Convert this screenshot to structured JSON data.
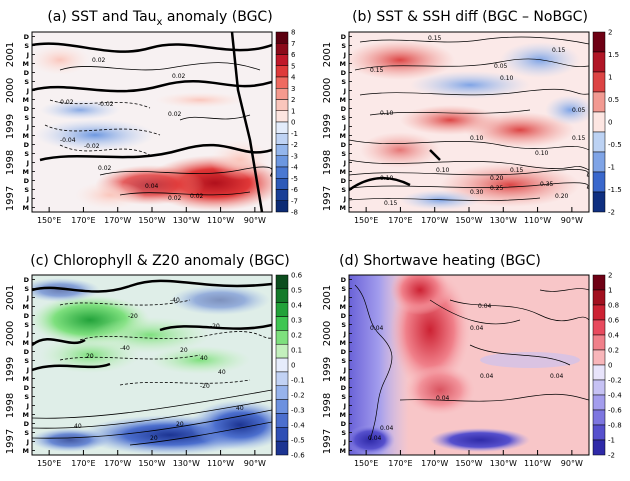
{
  "chart_data": [
    {
      "type": "heatmap",
      "title": "(a) SST and Tau",
      "title_sub": "x",
      "title_tail": " anomaly (BGC)",
      "x_ticks": [
        "150°E",
        "170°E",
        "170°W",
        "150°W",
        "130°W",
        "110°W",
        "90°W"
      ],
      "y_years": [
        "1997",
        "1998",
        "1999",
        "2000",
        "2001"
      ],
      "y_months": [
        "M",
        "J",
        "S",
        "D",
        "M",
        "J",
        "S",
        "D",
        "M",
        "J",
        "S",
        "D",
        "M",
        "J",
        "S",
        "D",
        "M",
        "J",
        "S",
        "D"
      ],
      "colorbar_ticks": [
        "8",
        "7",
        "6",
        "5",
        "4",
        "3",
        "2",
        "1",
        "0",
        "-1",
        "-2",
        "-3",
        "-4",
        "-5",
        "-6",
        "-7",
        "-8"
      ],
      "colorbar_colors": [
        "#5c0010",
        "#8b0a1a",
        "#c0182a",
        "#df3a3a",
        "#ef6a60",
        "#f59a8e",
        "#fac6bc",
        "#fde5e0",
        "#e3ecfb",
        "#bfd3f4",
        "#94b6ec",
        "#6c97e0",
        "#4a78d2",
        "#2e5ab8",
        "#1a3f96",
        "#0c2b74"
      ],
      "contour_labels": [
        "0.02",
        "0.02",
        "-0.02",
        "-0.02",
        "-0.04",
        "-0.02",
        "0.02",
        "0.02",
        "0.04",
        "0.02",
        "0.02"
      ]
    },
    {
      "type": "heatmap",
      "title": "(b) SST & SSH diff (BGC – NoBGC)",
      "x_ticks": [
        "150°E",
        "170°E",
        "170°W",
        "150°W",
        "130°W",
        "110°W",
        "90°W"
      ],
      "y_years": [
        "1997",
        "1998",
        "1999",
        "2000",
        "2001"
      ],
      "y_months": [
        "M",
        "J",
        "S",
        "D",
        "M",
        "J",
        "S",
        "D",
        "M",
        "J",
        "S",
        "D",
        "M",
        "J",
        "S",
        "D",
        "M",
        "J",
        "S",
        "D"
      ],
      "colorbar_ticks": [
        "2",
        "1.5",
        "1",
        "0.5",
        "0",
        "-0.5",
        "-1",
        "-1.5",
        "-2"
      ],
      "colorbar_colors": [
        "#6e0014",
        "#b01626",
        "#dc4444",
        "#f29a92",
        "#fde6e2",
        "#bcd2f3",
        "#7fa4e6",
        "#3a68cc",
        "#0f2f80"
      ],
      "contour_labels": [
        "0.15",
        "0.15",
        "0.15",
        "0.05",
        "0.10",
        "0.10",
        "0.10",
        "0.05",
        "0.10",
        "0.15",
        "0.20",
        "0.25",
        "0.30",
        "0.35",
        "0.20",
        "0.15",
        "0.10",
        "0.10",
        "0.15"
      ]
    },
    {
      "type": "heatmap",
      "title": "(c) Chlorophyll & Z20 anomaly (BGC)",
      "x_ticks": [
        "150°E",
        "170°E",
        "170°W",
        "150°W",
        "130°W",
        "110°W",
        "90°W"
      ],
      "y_years": [
        "1997",
        "1998",
        "1999",
        "2000",
        "2001"
      ],
      "y_months": [
        "M",
        "J",
        "S",
        "D",
        "M",
        "J",
        "S",
        "D",
        "M",
        "J",
        "S",
        "D",
        "M",
        "J",
        "S",
        "D",
        "M",
        "J",
        "S",
        "D"
      ],
      "colorbar_ticks": [
        "0.6",
        "0.5",
        "0.4",
        "0.3",
        "0.2",
        "0.1",
        "0",
        "-0.1",
        "-0.2",
        "-0.3",
        "-0.4",
        "-0.5",
        "-0.6"
      ],
      "colorbar_colors": [
        "#0c4d1e",
        "#137a2a",
        "#22a23a",
        "#3fc653",
        "#7ee07e",
        "#c3f0bd",
        "#e6ecfb",
        "#c2d2f4",
        "#97b3ec",
        "#6d91df",
        "#4c6fce",
        "#2f4fb5",
        "#1c3492"
      ],
      "contour_labels": [
        "-40",
        "-20",
        "-20",
        "-40",
        "20",
        "40",
        "20",
        "-20",
        "40",
        "40",
        "20",
        "20",
        "40"
      ]
    },
    {
      "type": "heatmap",
      "title": "(d) Shortwave heating (BGC)",
      "x_ticks": [
        "150°E",
        "170°E",
        "170°W",
        "150°W",
        "130°W",
        "110°W",
        "90°W"
      ],
      "y_years": [
        "1997",
        "1998",
        "1999",
        "2000",
        "2001"
      ],
      "y_months": [
        "M",
        "J",
        "S",
        "D",
        "M",
        "J",
        "S",
        "D",
        "M",
        "J",
        "S",
        "D",
        "M",
        "J",
        "S",
        "D",
        "M",
        "J",
        "S",
        "D"
      ],
      "colorbar_ticks": [
        "2",
        "1",
        "0.8",
        "0.6",
        "0.4",
        "0.2",
        "0",
        "-0.2",
        "-0.4",
        "-0.6",
        "-0.8",
        "-1",
        "-2"
      ],
      "colorbar_colors": [
        "#6e0014",
        "#a2101f",
        "#cc2233",
        "#e84a5e",
        "#f0808a",
        "#f8b6ba",
        "#e8e4fb",
        "#c6c2f4",
        "#a39ded",
        "#7d76e0",
        "#5650cd",
        "#2f2aa8"
      ],
      "contour_labels": [
        "0.04",
        "0.04",
        "0.04",
        "0.04",
        "0.04",
        "0.04",
        "0.04",
        "0.04"
      ]
    }
  ]
}
